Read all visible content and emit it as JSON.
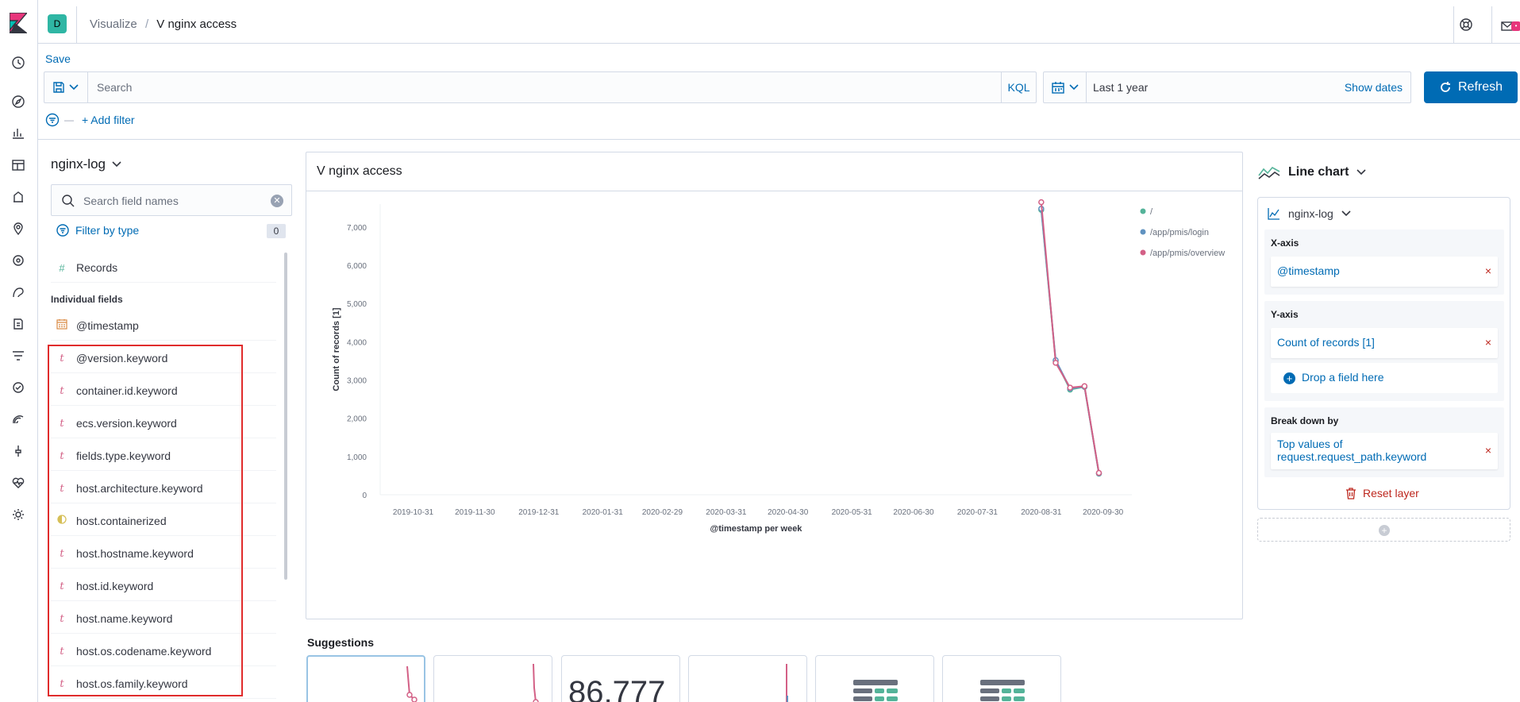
{
  "header": {
    "space_initial": "D",
    "breadcrumb_parent": "Visualize",
    "breadcrumb_sep": "/",
    "breadcrumb_current": "V nginx access",
    "mail_badge": "•"
  },
  "toolbar": {
    "save_label": "Save",
    "search_placeholder": "Search",
    "kql_label": "KQL",
    "date_range": "Last 1 year",
    "show_dates_label": "Show dates",
    "refresh_label": "Refresh",
    "add_filter_label": "+ Add filter",
    "filter_dash": "—"
  },
  "field_list": {
    "index_pattern": "nginx-log",
    "search_placeholder": "Search field names",
    "filter_by_type_label": "Filter by type",
    "filter_count": "0",
    "records_label": "Records",
    "records_icon": "#",
    "individual_fields_label": "Individual fields",
    "fields": [
      {
        "name": "@timestamp",
        "type": "date",
        "icon": "calendar-icon"
      },
      {
        "name": "@version.keyword",
        "type": "string",
        "icon": "t"
      },
      {
        "name": "container.id.keyword",
        "type": "string",
        "icon": "t"
      },
      {
        "name": "ecs.version.keyword",
        "type": "string",
        "icon": "t"
      },
      {
        "name": "fields.type.keyword",
        "type": "string",
        "icon": "t"
      },
      {
        "name": "host.architecture.keyword",
        "type": "string",
        "icon": "t"
      },
      {
        "name": "host.containerized",
        "type": "boolean",
        "icon": "boolean-icon"
      },
      {
        "name": "host.hostname.keyword",
        "type": "string",
        "icon": "t"
      },
      {
        "name": "host.id.keyword",
        "type": "string",
        "icon": "t"
      },
      {
        "name": "host.name.keyword",
        "type": "string",
        "icon": "t"
      },
      {
        "name": "host.os.codename.keyword",
        "type": "string",
        "icon": "t"
      },
      {
        "name": "host.os.family.keyword",
        "type": "string",
        "icon": "t"
      }
    ]
  },
  "chart": {
    "panel_title": "V nginx access"
  },
  "chart_data": {
    "type": "line",
    "title": "",
    "xlabel": "@timestamp per week",
    "ylabel": "Count of records [1]",
    "ylim": [
      0,
      7600
    ],
    "yticks": [
      0,
      1000,
      2000,
      3000,
      4000,
      5000,
      6000,
      7000
    ],
    "ytick_labels": [
      "0",
      "1,000",
      "2,000",
      "3,000",
      "4,000",
      "5,000",
      "6,000",
      "7,000"
    ],
    "xticks": [
      "2019-10-31",
      "2019-11-30",
      "2019-12-31",
      "2020-01-31",
      "2020-02-29",
      "2020-03-31",
      "2020-04-30",
      "2020-05-31",
      "2020-06-30",
      "2020-07-31",
      "2020-08-31",
      "2020-09-30"
    ],
    "xlim": [
      "2019-10-15",
      "2020-10-14"
    ],
    "legend_position": "top-right",
    "series": [
      {
        "name": "/",
        "color": "#54b399",
        "x": [
          "2020-08-31",
          "2020-09-07",
          "2020-09-14",
          "2020-09-21",
          "2020-09-28"
        ],
        "values": [
          7450,
          3500,
          2750,
          2820,
          550
        ]
      },
      {
        "name": "/app/pmis/login",
        "color": "#6092c0",
        "x": [
          "2020-08-31",
          "2020-09-07",
          "2020-09-14",
          "2020-09-21",
          "2020-09-28"
        ],
        "values": [
          7480,
          3520,
          2780,
          2830,
          560
        ]
      },
      {
        "name": "/app/pmis/overview",
        "color": "#d36086",
        "x": [
          "2020-08-31",
          "2020-09-07",
          "2020-09-14",
          "2020-09-21",
          "2020-09-28"
        ],
        "values": [
          7650,
          3450,
          2800,
          2840,
          570
        ]
      }
    ]
  },
  "suggestions": {
    "label": "Suggestions",
    "metric_value": "86,777"
  },
  "config": {
    "chart_type": "Line chart",
    "layer_index": "nginx-log",
    "x_axis_label": "X-axis",
    "x_axis_value": "@timestamp",
    "y_axis_label": "Y-axis",
    "y_axis_value": "Count of records [1]",
    "drop_field_label": "Drop a field here",
    "breakdown_label": "Break down by",
    "breakdown_value": "Top values of request.request_path.keyword",
    "remove_symbol": "×",
    "reset_layer_label": "Reset layer"
  }
}
